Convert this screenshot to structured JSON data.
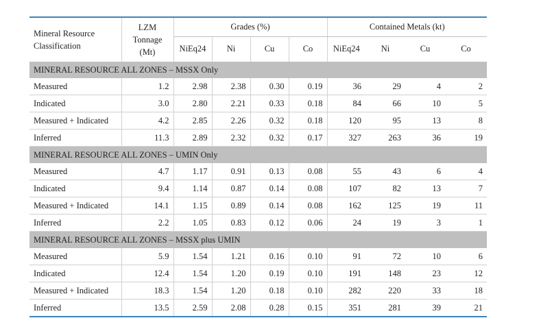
{
  "header": {
    "classification": "Mineral Resource Classification",
    "tonnage": "LZM Tonnage (Mt)",
    "grades_group": "Grades (%)",
    "metals_group": "Contained Metals (kt)",
    "sub": [
      "NiEq24",
      "Ni",
      "Cu",
      "Co",
      "NiEq24",
      "Ni",
      "Cu",
      "Co"
    ]
  },
  "sections": [
    {
      "title": "MINERAL RESOURCE ALL ZONES – MSSX Only",
      "rows": [
        {
          "label": "Measured",
          "values": [
            "1.2",
            "2.98",
            "2.38",
            "0.30",
            "0.19",
            "36",
            "29",
            "4",
            "2"
          ]
        },
        {
          "label": "Indicated",
          "values": [
            "3.0",
            "2.80",
            "2.21",
            "0.33",
            "0.18",
            "84",
            "66",
            "10",
            "5"
          ]
        },
        {
          "label": "Measured + Indicated",
          "values": [
            "4.2",
            "2.85",
            "2.26",
            "0.32",
            "0.18",
            "120",
            "95",
            "13",
            "8"
          ]
        },
        {
          "label": "Inferred",
          "values": [
            "11.3",
            "2.89",
            "2.32",
            "0.32",
            "0.17",
            "327",
            "263",
            "36",
            "19"
          ]
        }
      ]
    },
    {
      "title": "MINERAL RESOURCE ALL ZONES – UMIN Only",
      "rows": [
        {
          "label": "Measured",
          "values": [
            "4.7",
            "1.17",
            "0.91",
            "0.13",
            "0.08",
            "55",
            "43",
            "6",
            "4"
          ]
        },
        {
          "label": "Indicated",
          "values": [
            "9.4",
            "1.14",
            "0.87",
            "0.14",
            "0.08",
            "107",
            "82",
            "13",
            "7"
          ]
        },
        {
          "label": "Measured + Indicated",
          "values": [
            "14.1",
            "1.15",
            "0.89",
            "0.14",
            "0.08",
            "162",
            "125",
            "19",
            "11"
          ]
        },
        {
          "label": "Inferred",
          "values": [
            "2.2",
            "1.05",
            "0.83",
            "0.12",
            "0.06",
            "24",
            "19",
            "3",
            "1"
          ]
        }
      ]
    },
    {
      "title": "MINERAL RESOURCE ALL ZONES – MSSX plus UMIN",
      "rows": [
        {
          "label": "Measured",
          "values": [
            "5.9",
            "1.54",
            "1.21",
            "0.16",
            "0.10",
            "91",
            "72",
            "10",
            "6"
          ]
        },
        {
          "label": "Indicated",
          "values": [
            "12.4",
            "1.54",
            "1.20",
            "0.19",
            "0.10",
            "191",
            "148",
            "23",
            "12"
          ]
        },
        {
          "label": "Measured + Indicated",
          "values": [
            "18.3",
            "1.54",
            "1.20",
            "0.18",
            "0.10",
            "282",
            "220",
            "33",
            "18"
          ]
        },
        {
          "label": "Inferred",
          "values": [
            "13.5",
            "2.59",
            "2.08",
            "0.28",
            "0.15",
            "351",
            "281",
            "39",
            "21"
          ]
        }
      ]
    }
  ]
}
